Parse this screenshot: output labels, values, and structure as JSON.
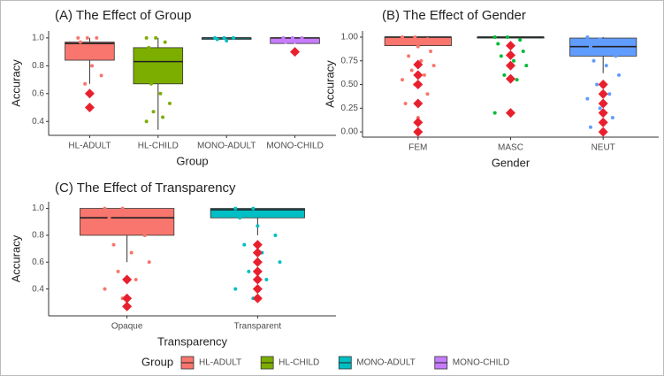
{
  "chart_data": [
    {
      "type": "box",
      "title": "(A) The Effect of Group",
      "x_label": "Group",
      "y_label": "Accuracy",
      "categories": [
        "HL-ADULT",
        "HL-CHILD",
        "MONO-ADULT",
        "MONO-CHILD"
      ],
      "colors": [
        "#F8766D",
        "#7CAE00",
        "#00BFC4",
        "#C77CFF"
      ],
      "boxes": [
        {
          "min": 0.67,
          "q1": 0.84,
          "median": 0.96,
          "q3": 0.97,
          "max": 1
        },
        {
          "min": 0.34,
          "q1": 0.67,
          "median": 0.83,
          "q3": 0.93,
          "max": 1
        },
        {
          "min": 0.98,
          "q1": 0.99,
          "median": 1,
          "q3": 1,
          "max": 1
        },
        {
          "min": 0.96,
          "q1": 0.96,
          "median": 1,
          "q3": 1,
          "max": 1
        }
      ],
      "points": [
        [
          1,
          1,
          1,
          0.97,
          0.93,
          0.9,
          0.87,
          0.8,
          0.73,
          0.67
        ],
        [
          1,
          1,
          0.97,
          0.93,
          0.9,
          0.8,
          0.67,
          0.6,
          0.53,
          0.47,
          0.43,
          0.4
        ],
        [
          1,
          1,
          1,
          0.99,
          0.98
        ],
        [
          1,
          1,
          1,
          0.97,
          0.97
        ]
      ],
      "outliers": [
        [
          0.6,
          0.5
        ],
        [],
        [],
        [
          0.9
        ]
      ],
      "outlier_color": "#E8202E",
      "ylim": [
        0.3,
        1.05
      ],
      "yticks": [
        0.4,
        0.6,
        0.8,
        {
          "value": 1,
          "label": "1.0"
        }
      ]
    },
    {
      "type": "box",
      "title": "(B) The Effect of Gender",
      "x_label": "Gender",
      "y_label": "Accuracy",
      "categories": [
        "FEM",
        "MASC",
        "NEUT"
      ],
      "colors": [
        "#F8766D",
        "#00BA38",
        "#619CFF"
      ],
      "boxes": [
        {
          "min": 0.89,
          "q1": 0.91,
          "median": 1,
          "q3": 1,
          "max": 1
        },
        {
          "min": 0.99,
          "q1": 0.99,
          "median": 1,
          "q3": 1,
          "max": 1
        },
        {
          "min": 0.62,
          "q1": 0.8,
          "median": 0.9,
          "q3": 0.99,
          "max": 1
        }
      ],
      "points": [
        [
          1,
          1,
          0.98,
          0.95,
          0.9,
          0.85,
          0.8,
          0.75,
          0.7,
          0.65,
          0.6,
          0.55,
          0.5,
          0.4,
          0.3,
          0.15
        ],
        [
          1,
          1,
          0.97,
          0.93,
          0.9,
          0.85,
          0.8,
          0.75,
          0.7,
          0.6,
          0.55,
          0.2
        ],
        [
          1,
          0.98,
          0.95,
          0.9,
          0.85,
          0.8,
          0.75,
          0.7,
          0.6,
          0.5,
          0.4,
          0.35,
          0.25,
          0.15,
          0.05,
          0
        ]
      ],
      "outliers": [
        [
          0.71,
          0.6,
          0.5,
          0.3,
          0.1,
          0
        ],
        [
          0.91,
          0.81,
          0.7,
          0.56,
          0.2
        ],
        [
          0.5,
          0.4,
          0.3,
          0.2,
          0.1,
          0
        ]
      ],
      "outlier_color": "#E8202E",
      "ylim": [
        -0.055,
        1.065
      ],
      "yticks": [
        {
          "value": 0,
          "label": "0.00"
        },
        {
          "value": 0.25,
          "label": "0.25"
        },
        {
          "value": 0.5,
          "label": "0.50"
        },
        {
          "value": 0.75,
          "label": "0.75"
        },
        {
          "value": 1,
          "label": "1.00"
        }
      ]
    },
    {
      "type": "box",
      "title": "(C) The Effect of Transparency",
      "x_label": "Transparency",
      "y_label": "Accuracy",
      "categories": [
        "Opaque",
        "Transparent"
      ],
      "colors": [
        "#F8766D",
        "#00BFC4"
      ],
      "boxes": [
        {
          "min": 0.6,
          "q1": 0.8,
          "median": 0.93,
          "q3": 1,
          "max": 1
        },
        {
          "min": 0.8,
          "q1": 0.93,
          "median": 0.99,
          "q3": 1,
          "max": 1
        }
      ],
      "points": [
        [
          1,
          1,
          0.97,
          0.93,
          0.87,
          0.8,
          0.73,
          0.67,
          0.6,
          0.53,
          0.47,
          0.4,
          0.33
        ],
        [
          1,
          1,
          0.97,
          0.93,
          0.87,
          0.8,
          0.73,
          0.67,
          0.6,
          0.53,
          0.47,
          0.4,
          0.33
        ]
      ],
      "outliers": [
        [
          0.47,
          0.33,
          0.27
        ],
        [
          0.73,
          0.67,
          0.6,
          0.53,
          0.47,
          0.4,
          0.33
        ]
      ],
      "outlier_color": "#E8202E",
      "ylim": [
        0.2,
        1.05
      ],
      "yticks": [
        0.4,
        0.6,
        0.8,
        {
          "value": 1,
          "label": "1.0"
        }
      ]
    }
  ],
  "legend": {
    "title": "Group",
    "items": [
      {
        "name": "HL-ADULT",
        "color": "#F8766D"
      },
      {
        "name": "HL-CHILD",
        "color": "#7CAE00"
      },
      {
        "name": "MONO-ADULT",
        "color": "#00BFC4"
      },
      {
        "name": "MONO-CHILD",
        "color": "#C77CFF"
      }
    ]
  }
}
